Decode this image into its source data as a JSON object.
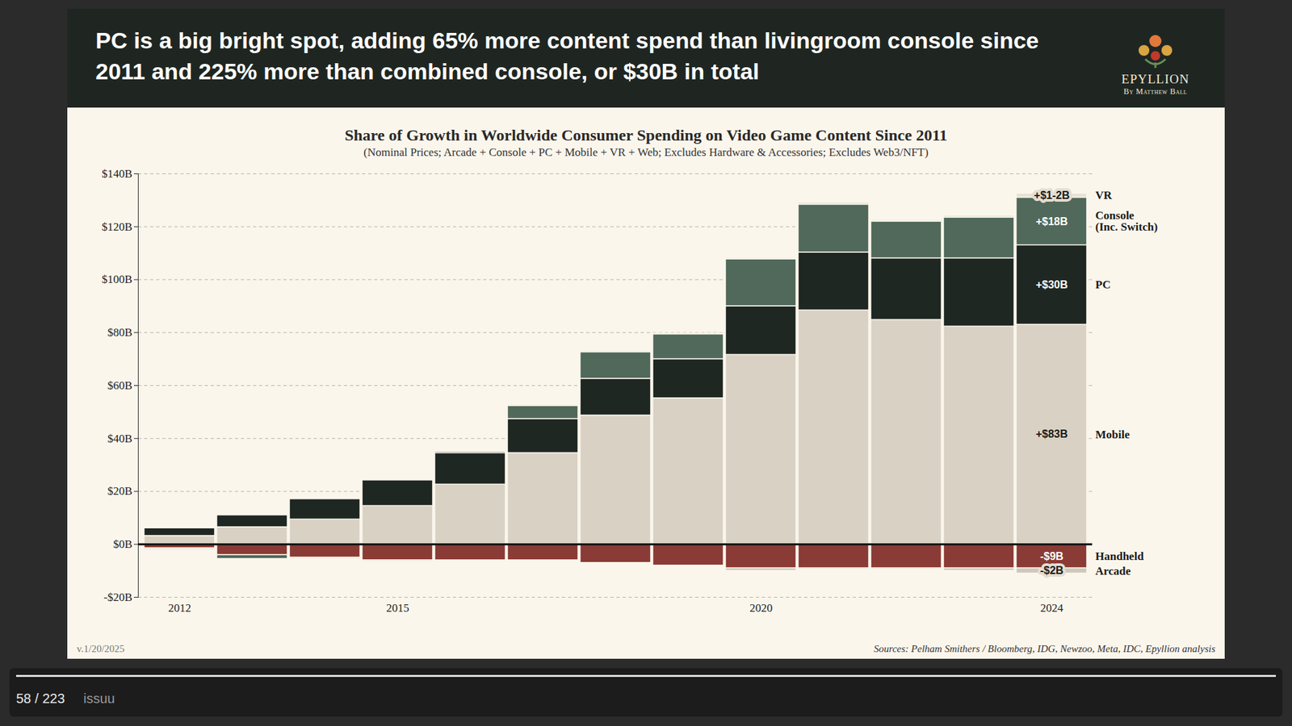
{
  "header": {
    "title": "PC is a big bright spot, adding 65% more content spend than livingroom console since 2011 and 225% more than combined console, or $30B in total",
    "logo": "EPYLLION",
    "logo_byline": "By Matthew Ball"
  },
  "chart_data": {
    "type": "bar",
    "title": "Share of Growth in Worldwide Consumer Spending on Video Game Content Since 2011",
    "subtitle": "(Nominal Prices; Arcade + Console + PC + Mobile + VR + Web; Excludes Hardware & Accessories; Excludes Web3/NFT)",
    "stacked": true,
    "grid": true,
    "data_labels": true,
    "categories": [
      "2012",
      null,
      null,
      "2015",
      null,
      null,
      null,
      null,
      "2020",
      null,
      null,
      null,
      "2024"
    ],
    "series": [
      {
        "name": "Mobile",
        "color": "#d9d2c4",
        "values": [
          3.2,
          6.5,
          9.4,
          14.5,
          22.6,
          34.5,
          48.7,
          55.2,
          71.6,
          88.4,
          84.8,
          82.3,
          83
        ],
        "value_labels": [
          null,
          null,
          null,
          null,
          null,
          null,
          null,
          null,
          null,
          null,
          null,
          null,
          "+$83B"
        ]
      },
      {
        "name": "PC",
        "color": "#1f2723",
        "values": [
          2.9,
          4.5,
          7.7,
          9.7,
          11.9,
          12.9,
          13.9,
          14.8,
          18.4,
          21.9,
          23.3,
          25.8,
          30
        ],
        "value_labels": [
          null,
          null,
          null,
          null,
          null,
          null,
          null,
          null,
          null,
          null,
          null,
          null,
          "+$30B"
        ]
      },
      {
        "name": "Console (Inc. Switch)",
        "color": "#50695a",
        "values": [
          0,
          -1.5,
          0,
          0,
          0.5,
          4.9,
          10,
          9.4,
          17.7,
          18.1,
          13.9,
          15.4,
          18
        ],
        "value_labels": [
          null,
          null,
          null,
          null,
          null,
          null,
          null,
          null,
          null,
          null,
          null,
          null,
          "+$18B"
        ]
      },
      {
        "name": "VR",
        "color": "#e6e1d6",
        "values": [
          0,
          0,
          0,
          0,
          0,
          0.5,
          0.5,
          0.3,
          0.5,
          0.7,
          0.5,
          0.7,
          1.5
        ],
        "value_labels": [
          null,
          null,
          null,
          null,
          null,
          null,
          null,
          null,
          null,
          null,
          null,
          null,
          "+$1-2B"
        ]
      },
      {
        "name": "Handheld",
        "color": "#8a3b35",
        "values": [
          -1.5,
          -4,
          -5,
          -6,
          -6,
          -6,
          -7,
          -8,
          -9,
          -9,
          -9,
          -9,
          -9
        ],
        "value_labels": [
          null,
          null,
          null,
          null,
          null,
          null,
          null,
          null,
          null,
          null,
          null,
          null,
          "-$9B"
        ]
      },
      {
        "name": "Arcade",
        "color": "#cfc8bb",
        "values": [
          -0.5,
          0,
          -0.5,
          -0.5,
          0,
          0,
          0,
          0,
          -1,
          -0.5,
          -0.5,
          -1,
          -2
        ],
        "value_labels": [
          null,
          null,
          null,
          null,
          null,
          null,
          null,
          null,
          null,
          null,
          null,
          null,
          "-$2B"
        ]
      }
    ],
    "ylim": [
      -20,
      140
    ],
    "yticks": [
      {
        "value": -20,
        "label": "-$20B"
      },
      {
        "value": 0,
        "label": "$0B"
      },
      {
        "value": 20,
        "label": "$20B"
      },
      {
        "value": 40,
        "label": "$40B"
      },
      {
        "value": 60,
        "label": "$60B"
      },
      {
        "value": 80,
        "label": "$80B"
      },
      {
        "value": 100,
        "label": "$100B"
      },
      {
        "value": 120,
        "label": "$120B"
      },
      {
        "value": 140,
        "label": "$140B"
      }
    ]
  },
  "footer": {
    "version": "v.1/20/2025",
    "sources": "Sources: Pelham Smithers / Bloomberg, IDG, Newzoo, Meta, IDC, Epyllion analysis"
  },
  "viewer": {
    "page": "58 / 223",
    "brand": "issuu"
  }
}
